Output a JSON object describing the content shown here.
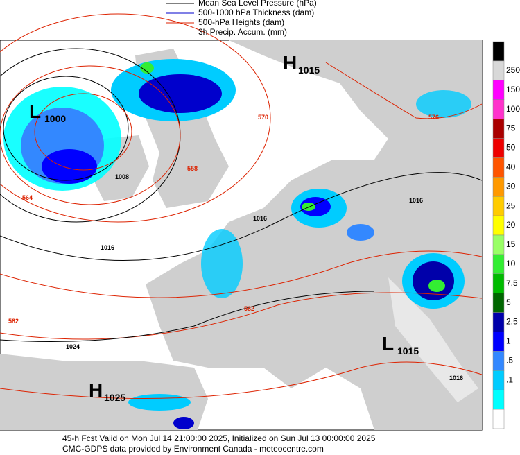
{
  "legend": [
    {
      "label": "Mean Sea Level Pressure (hPa)",
      "color": "#000000"
    },
    {
      "label": "500-1000 hPa Thickness (dam)",
      "color": "#0000cc"
    },
    {
      "label": "500-hPa Heights (dam)",
      "color": "#dd2200"
    },
    {
      "label": "3h Precip. Accum. (mm)",
      "color": null
    }
  ],
  "colorbar": {
    "colors": [
      "#000000",
      "#d8d8d8",
      "#ff00ff",
      "#ff33cc",
      "#aa0000",
      "#ee0000",
      "#ff5500",
      "#ff9900",
      "#ffcc00",
      "#ffff00",
      "#99ff66",
      "#33ee33",
      "#00bb00",
      "#006600",
      "#0000aa",
      "#0000ff",
      "#3388ff",
      "#00ccff",
      "#00ffff",
      "#ffffff"
    ],
    "labels": [
      "250",
      "150",
      "100",
      "75",
      "50",
      "40",
      "30",
      "25",
      "20",
      "15",
      "10",
      "7.5",
      "5",
      "2.5",
      "1",
      ".5",
      ".1"
    ]
  },
  "centers": [
    {
      "letter": "H",
      "value": "1015"
    },
    {
      "letter": "L",
      "value": "1000"
    },
    {
      "letter": "H",
      "value": "1025"
    },
    {
      "letter": "L",
      "value": "1015"
    }
  ],
  "contour_labels": [
    "570",
    "558",
    "1008",
    "564",
    "1016",
    "1016",
    "1016",
    "582",
    "576",
    "582",
    "1024",
    "1016"
  ],
  "footer": [
    "45-h Fcst Valid on Mon Jul 14 21:00:00 2025, Initialized on Sun Jul 13 00:00:00 2025",
    "CMC-GDPS data provided by Environment Canada - meteocentre.com"
  ]
}
